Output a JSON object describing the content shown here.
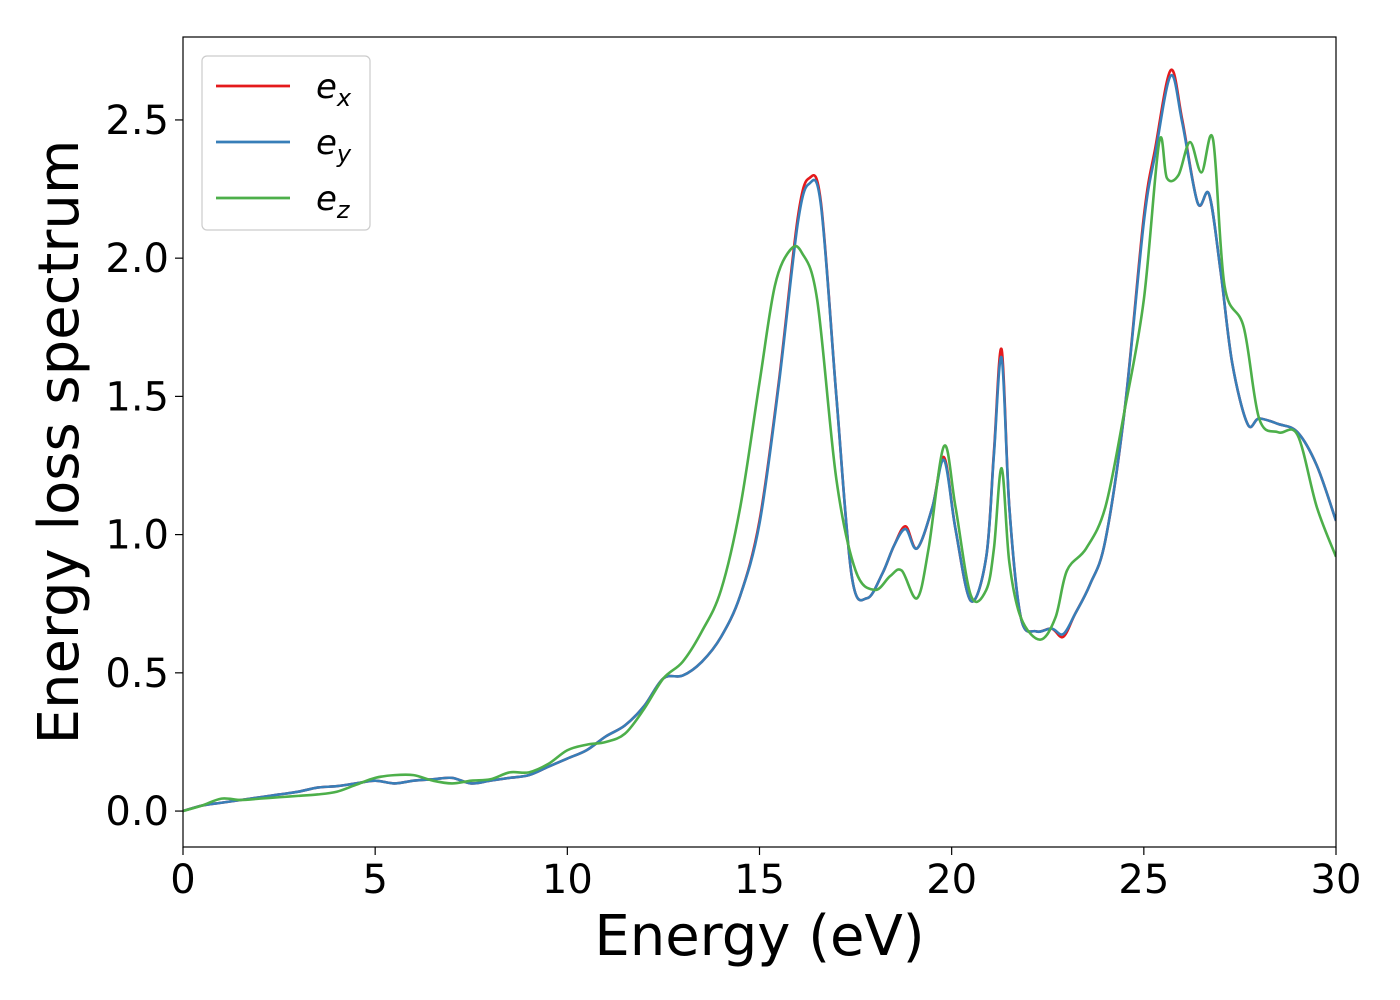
{
  "chart_data": {
    "type": "line",
    "title": "",
    "xlabel": "Energy (eV)",
    "ylabel": "Energy loss spectrum",
    "xlim": [
      0,
      30
    ],
    "ylim": [
      -0.13,
      2.8
    ],
    "xticks": [
      "0",
      "5",
      "10",
      "15",
      "20",
      "25",
      "30"
    ],
    "yticks": [
      "0.0",
      "0.5",
      "1.0",
      "1.5",
      "2.0",
      "2.5"
    ],
    "grid": false,
    "legend_position": "top-left",
    "series": [
      {
        "name": "e",
        "subscript": "x",
        "color": "#e41a1c",
        "x": [
          0,
          0.5,
          1,
          1.5,
          2,
          2.5,
          3,
          3.5,
          4,
          4.5,
          5,
          5.5,
          6,
          6.5,
          7,
          7.5,
          8,
          8.5,
          9,
          9.5,
          10,
          10.5,
          11,
          11.5,
          12,
          12.5,
          13,
          13.5,
          14,
          14.5,
          15,
          15.5,
          16,
          16.3,
          16.6,
          17,
          17.4,
          17.8,
          18.2,
          18.5,
          18.8,
          19.1,
          19.5,
          19.8,
          20.1,
          20.5,
          20.9,
          21.1,
          21.3,
          21.5,
          21.8,
          22.2,
          22.6,
          22.9,
          23.2,
          23.6,
          24,
          24.5,
          25,
          25.3,
          25.7,
          26,
          26.4,
          26.7,
          27,
          27.3,
          27.7,
          28,
          28.5,
          29,
          29.5,
          30
        ],
        "values": [
          0,
          0.02,
          0.03,
          0.04,
          0.05,
          0.06,
          0.07,
          0.085,
          0.09,
          0.1,
          0.11,
          0.1,
          0.11,
          0.115,
          0.12,
          0.1,
          0.11,
          0.12,
          0.13,
          0.16,
          0.19,
          0.22,
          0.27,
          0.31,
          0.38,
          0.48,
          0.49,
          0.54,
          0.63,
          0.78,
          1.05,
          1.55,
          2.15,
          2.29,
          2.2,
          1.5,
          0.85,
          0.77,
          0.86,
          0.96,
          1.03,
          0.95,
          1.1,
          1.28,
          1.02,
          0.76,
          0.92,
          1.3,
          1.67,
          1.1,
          0.7,
          0.65,
          0.66,
          0.63,
          0.71,
          0.82,
          0.98,
          1.45,
          2.15,
          2.4,
          2.68,
          2.5,
          2.2,
          2.23,
          1.95,
          1.62,
          1.4,
          1.42,
          1.4,
          1.37,
          1.25,
          1.05
        ]
      },
      {
        "name": "e",
        "subscript": "y",
        "color": "#377eb8",
        "x": [
          0,
          0.5,
          1,
          1.5,
          2,
          2.5,
          3,
          3.5,
          4,
          4.5,
          5,
          5.5,
          6,
          6.5,
          7,
          7.5,
          8,
          8.5,
          9,
          9.5,
          10,
          10.5,
          11,
          11.5,
          12,
          12.5,
          13,
          13.5,
          14,
          14.5,
          15,
          15.5,
          16,
          16.3,
          16.6,
          17,
          17.4,
          17.8,
          18.2,
          18.5,
          18.8,
          19.1,
          19.5,
          19.8,
          20.1,
          20.5,
          20.9,
          21.1,
          21.3,
          21.5,
          21.8,
          22.2,
          22.6,
          22.9,
          23.2,
          23.6,
          24,
          24.5,
          25,
          25.3,
          25.7,
          26,
          26.4,
          26.7,
          27,
          27.3,
          27.7,
          28,
          28.5,
          29,
          29.5,
          30
        ],
        "values": [
          0,
          0.02,
          0.03,
          0.04,
          0.05,
          0.06,
          0.07,
          0.085,
          0.09,
          0.1,
          0.11,
          0.1,
          0.11,
          0.115,
          0.12,
          0.1,
          0.11,
          0.12,
          0.13,
          0.16,
          0.19,
          0.22,
          0.27,
          0.31,
          0.38,
          0.48,
          0.49,
          0.54,
          0.63,
          0.78,
          1.04,
          1.54,
          2.13,
          2.27,
          2.19,
          1.5,
          0.85,
          0.77,
          0.86,
          0.96,
          1.02,
          0.95,
          1.1,
          1.27,
          1.02,
          0.76,
          0.92,
          1.29,
          1.64,
          1.1,
          0.7,
          0.65,
          0.66,
          0.64,
          0.71,
          0.82,
          0.98,
          1.45,
          2.13,
          2.38,
          2.66,
          2.49,
          2.2,
          2.23,
          1.95,
          1.62,
          1.4,
          1.42,
          1.4,
          1.37,
          1.25,
          1.05
        ]
      },
      {
        "name": "e",
        "subscript": "z",
        "color": "#4daf4a",
        "x": [
          0,
          0.5,
          1,
          1.5,
          2,
          2.5,
          3,
          3.5,
          4,
          4.5,
          5,
          5.5,
          6,
          6.5,
          7,
          7.5,
          8,
          8.5,
          9,
          9.5,
          10,
          10.5,
          11,
          11.5,
          12,
          12.5,
          13,
          13.5,
          14,
          14.5,
          15,
          15.4,
          15.8,
          16.1,
          16.5,
          17,
          17.5,
          18,
          18.4,
          18.7,
          19.1,
          19.4,
          19.8,
          20.1,
          20.5,
          20.9,
          21.1,
          21.3,
          21.5,
          21.8,
          22.3,
          22.7,
          23,
          23.5,
          24,
          24.5,
          25,
          25.4,
          25.6,
          25.9,
          26.2,
          26.5,
          26.8,
          27.1,
          27.6,
          28,
          28.5,
          29,
          29.5,
          30
        ],
        "values": [
          0,
          0.02,
          0.045,
          0.04,
          0.045,
          0.05,
          0.055,
          0.06,
          0.07,
          0.095,
          0.12,
          0.13,
          0.13,
          0.11,
          0.1,
          0.11,
          0.115,
          0.14,
          0.14,
          0.17,
          0.22,
          0.24,
          0.25,
          0.28,
          0.37,
          0.48,
          0.54,
          0.65,
          0.8,
          1.1,
          1.55,
          1.9,
          2.03,
          2.02,
          1.85,
          1.2,
          0.87,
          0.8,
          0.85,
          0.87,
          0.77,
          0.95,
          1.32,
          1.1,
          0.78,
          0.8,
          0.95,
          1.24,
          0.9,
          0.7,
          0.62,
          0.7,
          0.87,
          0.95,
          1.1,
          1.45,
          1.85,
          2.42,
          2.29,
          2.3,
          2.42,
          2.31,
          2.43,
          1.9,
          1.75,
          1.42,
          1.37,
          1.36,
          1.1,
          0.92
        ]
      }
    ]
  }
}
